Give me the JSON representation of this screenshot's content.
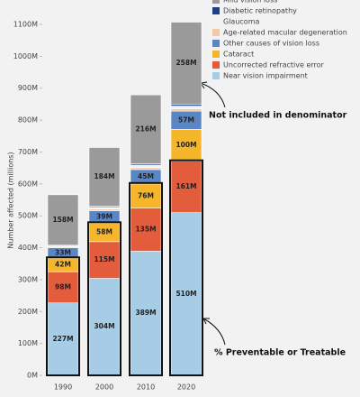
{
  "chart_data": {
    "type": "stacked_bar",
    "y_label": "Number affected (millions)",
    "categories": [
      "1990",
      "2000",
      "2010",
      "2020"
    ],
    "series": [
      {
        "name": "Near vision impairment",
        "color": "#a7cde6",
        "values": [
          227,
          304,
          389,
          510
        ],
        "value_labels": [
          "227M",
          "304M",
          "389M",
          "510M"
        ]
      },
      {
        "name": "Uncorrected refractive error",
        "color": "#e35c3c",
        "values": [
          98,
          115,
          135,
          161
        ],
        "value_labels": [
          "98M",
          "115M",
          "135M",
          "161M"
        ]
      },
      {
        "name": "Cataract",
        "color": "#f6b62b",
        "values": [
          42,
          58,
          76,
          100
        ],
        "value_labels": [
          "42M",
          "58M",
          "76M",
          "100M"
        ]
      },
      {
        "name": "Other causes of vision loss",
        "color": "#5b86c5",
        "values": [
          33,
          39,
          45,
          57
        ],
        "value_labels": [
          "33M",
          "39M",
          "45M",
          "57M"
        ]
      },
      {
        "name": "Age-related macular degeneration",
        "color": "#f6c9a6",
        "values": [
          3,
          5,
          6,
          7
        ]
      },
      {
        "name": "Glaucoma",
        "color": "#eef2f6",
        "values": [
          3,
          6,
          8,
          9
        ]
      },
      {
        "name": "Diabetic retinopathy",
        "color": "#1f3f8a",
        "values": [
          2,
          3,
          4,
          5
        ]
      },
      {
        "name": "Mild vision loss",
        "color": "#9a9a9a",
        "values": [
          158,
          184,
          216,
          258
        ],
        "value_labels": [
          "158M",
          "184M",
          "216M",
          "258M"
        ]
      }
    ],
    "ylim": [
      0,
      1100
    ],
    "yticks": [
      {
        "value": 0,
        "label": "0M"
      },
      {
        "value": 100,
        "label": "100M"
      },
      {
        "value": 200,
        "label": "200M"
      },
      {
        "value": 300,
        "label": "300M"
      },
      {
        "value": 400,
        "label": "400M"
      },
      {
        "value": 500,
        "label": "500M"
      },
      {
        "value": 600,
        "label": "600M"
      },
      {
        "value": 700,
        "label": "700M"
      },
      {
        "value": 800,
        "label": "800M"
      },
      {
        "value": 900,
        "label": "900M"
      },
      {
        "value": 1000,
        "label": "1000M"
      },
      {
        "value": 1100,
        "label": "1100M"
      }
    ],
    "annotations": [
      "Not included in denominator",
      "% Preventable or Treatable"
    ]
  }
}
